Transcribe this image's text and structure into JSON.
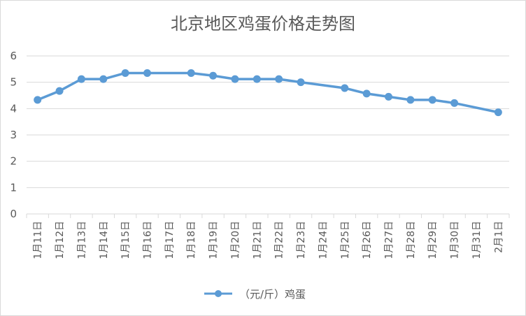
{
  "chart_data": {
    "type": "line",
    "title": "北京地区鸡蛋价格走势图",
    "xlabel": "",
    "ylabel": "",
    "ylim": [
      0,
      6
    ],
    "yticks": [
      0,
      1,
      2,
      3,
      4,
      5,
      6
    ],
    "grid": true,
    "legend_position": "bottom",
    "categories": [
      "1月11日",
      "1月12日",
      "1月13日",
      "1月14日",
      "1月15日",
      "1月16日",
      "1月17日",
      "1月18日",
      "1月19日",
      "1月20日",
      "1月21日",
      "1月22日",
      "1月23日",
      "1月24日",
      "1月25日",
      "1月26日",
      "1月27日",
      "1月28日",
      "1月29日",
      "1月30日",
      "1月31日",
      "2月1日"
    ],
    "series": [
      {
        "name": "（元/斤）鸡蛋",
        "color": "#5b9bd5",
        "points": [
          {
            "x": "1月11日",
            "y": 4.33
          },
          {
            "x": "1月12日",
            "y": 4.67
          },
          {
            "x": "1月13日",
            "y": 5.12
          },
          {
            "x": "1月14日",
            "y": 5.12
          },
          {
            "x": "1月15日",
            "y": 5.35
          },
          {
            "x": "1月16日",
            "y": 5.35
          },
          {
            "x": "1月18日",
            "y": 5.35
          },
          {
            "x": "1月19日",
            "y": 5.25
          },
          {
            "x": "1月20日",
            "y": 5.12
          },
          {
            "x": "1月21日",
            "y": 5.12
          },
          {
            "x": "1月22日",
            "y": 5.12
          },
          {
            "x": "1月23日",
            "y": 5.0
          },
          {
            "x": "1月25日",
            "y": 4.78
          },
          {
            "x": "1月26日",
            "y": 4.57
          },
          {
            "x": "1月27日",
            "y": 4.45
          },
          {
            "x": "1月28日",
            "y": 4.33
          },
          {
            "x": "1月29日",
            "y": 4.33
          },
          {
            "x": "1月30日",
            "y": 4.21
          },
          {
            "x": "2月1日",
            "y": 3.86
          }
        ]
      }
    ],
    "colors": {
      "series": "#5b9bd5",
      "grid": "#d9d9d9",
      "text": "#595959"
    }
  }
}
